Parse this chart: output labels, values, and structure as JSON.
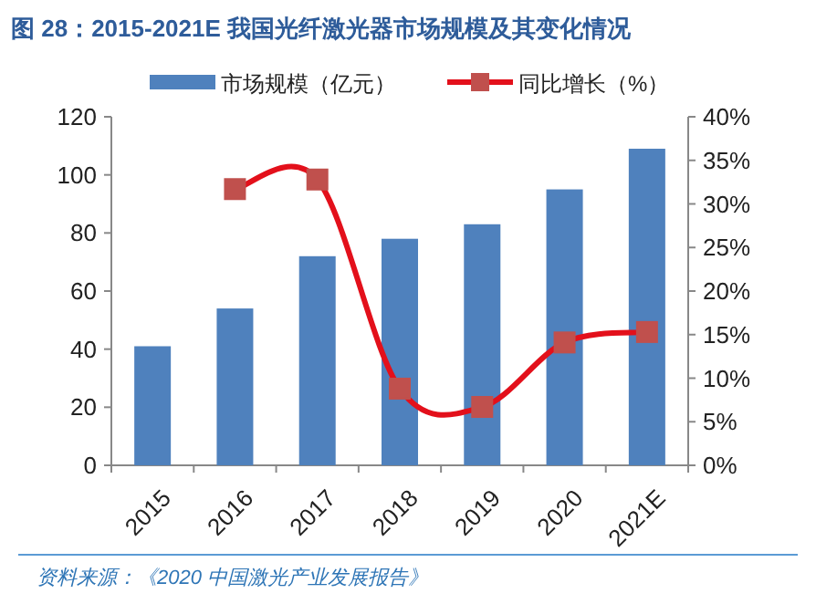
{
  "chart_data": {
    "type": "bar",
    "title": "图 28：2015-2021E 我国光纤激光器市场规模及其变化情况",
    "categories": [
      "2015",
      "2016",
      "2017",
      "2018",
      "2019",
      "2020",
      "2021E"
    ],
    "series": [
      {
        "name": "市场规模（亿元）",
        "color": "#4f81bd",
        "values": [
          41,
          54,
          72,
          78,
          83,
          95,
          109
        ]
      },
      {
        "name": "同比增长（%）",
        "type": "line",
        "axis": "y2",
        "color": "#e3101b",
        "marker": "square",
        "values": [
          null,
          31.7,
          32.8,
          8.8,
          6.7,
          14.1,
          15.3
        ]
      }
    ],
    "ylim": [
      0,
      120
    ],
    "yticks": [
      0,
      20,
      40,
      60,
      80,
      100,
      120
    ],
    "y2lim": [
      0,
      40
    ],
    "y2ticks": [
      {
        "value": 0,
        "label": "0%"
      },
      {
        "value": 5,
        "label": "5%"
      },
      {
        "value": 10,
        "label": "10%"
      },
      {
        "value": 15,
        "label": "15%"
      },
      {
        "value": 20,
        "label": "20%"
      },
      {
        "value": 25,
        "label": "25%"
      },
      {
        "value": 30,
        "label": "30%"
      },
      {
        "value": 35,
        "label": "35%"
      },
      {
        "value": 40,
        "label": "40%"
      }
    ],
    "legend": "top",
    "grid": false,
    "annotations": [
      "资料来源：《2020 中国激光产业发展报告》"
    ]
  }
}
